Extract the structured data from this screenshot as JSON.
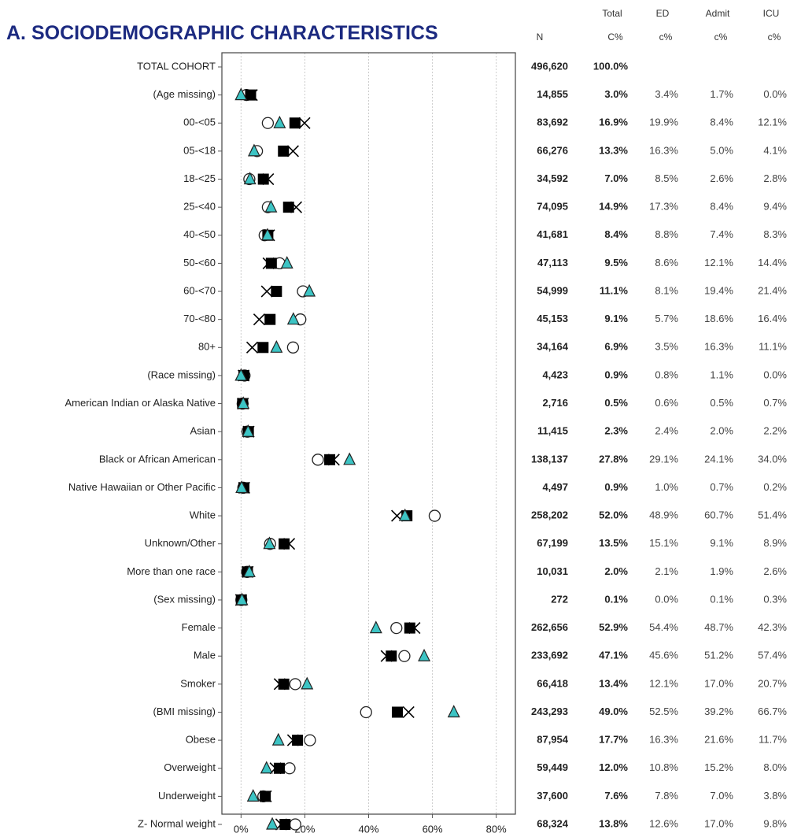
{
  "chart_data": {
    "type": "dot",
    "title": "A. SOCIODEMOGRAPHIC CHARACTERISTICS",
    "n_header": "N",
    "categories": [
      "TOTAL COHORT",
      "(Age missing)",
      "00-<05",
      "05-<18",
      "18-<25",
      "25-<40",
      "40-<50",
      "50-<60",
      "60-<70",
      "70-<80",
      "80+",
      "(Race missing)",
      "American Indian or Alaska Native",
      "Asian",
      "Black or African American",
      "Native Hawaiian or Other Pacific",
      "White",
      "Unknown/Other",
      "More than one race",
      "(Sex missing)",
      "Female",
      "Male",
      "Smoker",
      "(BMI missing)",
      "Obese",
      "Overweight",
      "Underweight",
      "Z- Normal weight"
    ],
    "n": [
      "496,620",
      "14,855",
      "83,692",
      "66,276",
      "34,592",
      "74,095",
      "41,681",
      "47,113",
      "54,999",
      "45,153",
      "34,164",
      "4,423",
      "2,716",
      "11,415",
      "138,137",
      "4,497",
      "258,202",
      "67,199",
      "10,031",
      "272",
      "262,656",
      "233,692",
      "66,418",
      "243,293",
      "87,954",
      "59,449",
      "37,600",
      "68,324"
    ],
    "series": [
      {
        "name": "Total",
        "unit": "C%",
        "marker": "square",
        "color": "#000000",
        "values": [
          100,
          3.0,
          16.9,
          13.3,
          7.0,
          14.9,
          8.4,
          9.5,
          11.1,
          9.1,
          6.9,
          0.9,
          0.5,
          2.3,
          27.8,
          0.9,
          52.0,
          13.5,
          2.0,
          0.1,
          52.9,
          47.1,
          13.4,
          49.0,
          17.7,
          12.0,
          7.6,
          13.8
        ],
        "value_labels": [
          "100.0%",
          "3.0%",
          "16.9%",
          "13.3%",
          "7.0%",
          "14.9%",
          "8.4%",
          "9.5%",
          "11.1%",
          "9.1%",
          "6.9%",
          "0.9%",
          "0.5%",
          "2.3%",
          "27.8%",
          "0.9%",
          "52.0%",
          "13.5%",
          "2.0%",
          "0.1%",
          "52.9%",
          "47.1%",
          "13.4%",
          "49.0%",
          "17.7%",
          "12.0%",
          "7.6%",
          "13.8%"
        ]
      },
      {
        "name": "ED",
        "unit": "c%",
        "marker": "x",
        "color": "#000000",
        "values": [
          null,
          3.4,
          19.9,
          16.3,
          8.5,
          17.3,
          8.8,
          8.6,
          8.1,
          5.7,
          3.5,
          0.8,
          0.6,
          2.4,
          29.1,
          1.0,
          48.9,
          15.1,
          2.1,
          0.0,
          54.4,
          45.6,
          12.1,
          52.5,
          16.3,
          10.8,
          7.8,
          12.6
        ],
        "value_labels": [
          null,
          "3.4%",
          "19.9%",
          "16.3%",
          "8.5%",
          "17.3%",
          "8.8%",
          "8.6%",
          "8.1%",
          "5.7%",
          "3.5%",
          "0.8%",
          "0.6%",
          "2.4%",
          "29.1%",
          "1.0%",
          "48.9%",
          "15.1%",
          "2.1%",
          "0.0%",
          "54.4%",
          "45.6%",
          "12.1%",
          "52.5%",
          "16.3%",
          "10.8%",
          "7.8%",
          "12.6%"
        ]
      },
      {
        "name": "Admit",
        "unit": "c%",
        "marker": "circle",
        "color": "#ffffff",
        "values": [
          null,
          1.7,
          8.4,
          5.0,
          2.6,
          8.4,
          7.4,
          12.1,
          19.4,
          18.6,
          16.3,
          1.1,
          0.5,
          2.0,
          24.1,
          0.7,
          60.7,
          9.1,
          1.9,
          0.1,
          48.7,
          51.2,
          17.0,
          39.2,
          21.6,
          15.2,
          7.0,
          17.0
        ],
        "value_labels": [
          null,
          "1.7%",
          "8.4%",
          "5.0%",
          "2.6%",
          "8.4%",
          "7.4%",
          "12.1%",
          "19.4%",
          "18.6%",
          "16.3%",
          "1.1%",
          "0.5%",
          "2.0%",
          "24.1%",
          "0.7%",
          "60.7%",
          "9.1%",
          "1.9%",
          "0.1%",
          "48.7%",
          "51.2%",
          "17.0%",
          "39.2%",
          "21.6%",
          "15.2%",
          "7.0%",
          "17.0%"
        ]
      },
      {
        "name": "ICU",
        "unit": "c%",
        "marker": "triangle",
        "color": "#3cc4c4",
        "values": [
          null,
          0.0,
          12.1,
          4.1,
          2.8,
          9.4,
          8.3,
          14.4,
          21.4,
          16.4,
          11.1,
          0.0,
          0.7,
          2.2,
          34.0,
          0.2,
          51.4,
          8.9,
          2.6,
          0.3,
          42.3,
          57.4,
          20.7,
          66.7,
          11.7,
          8.0,
          3.8,
          9.8
        ],
        "value_labels": [
          null,
          "0.0%",
          "12.1%",
          "4.1%",
          "2.8%",
          "9.4%",
          "8.3%",
          "14.4%",
          "21.4%",
          "16.4%",
          "11.1%",
          "0.0%",
          "0.7%",
          "2.2%",
          "34.0%",
          "0.2%",
          "51.4%",
          "8.9%",
          "2.6%",
          "0.3%",
          "42.3%",
          "57.4%",
          "20.7%",
          "66.7%",
          "11.7%",
          "8.0%",
          "3.8%",
          "9.8%"
        ]
      }
    ],
    "xlim": [
      -6,
      86
    ],
    "xticks": [
      {
        "value": 0,
        "label": "0%"
      },
      {
        "value": 20,
        "label": "20%"
      },
      {
        "value": 40,
        "label": "40%"
      },
      {
        "value": 60,
        "label": "60%"
      },
      {
        "value": 80,
        "label": "80%"
      }
    ],
    "grid": true
  }
}
